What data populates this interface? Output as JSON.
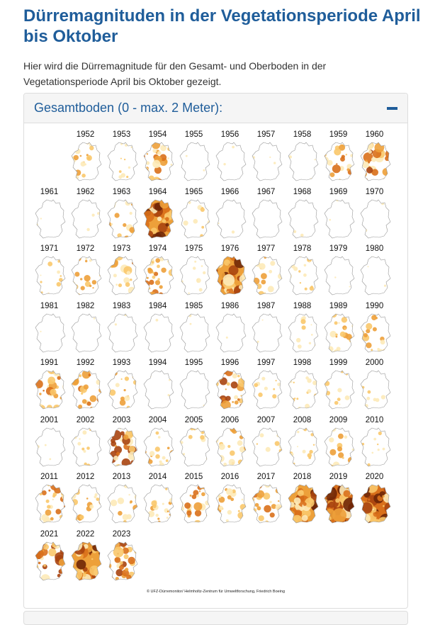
{
  "page": {
    "title": "Dürremagnituden in der Vegetationsperiode April bis Oktober",
    "intro": "Hier wird die Dürremagnitude für den Gesamt- und Oberboden in der Vegetationsperiode April bis Oktober gezeigt."
  },
  "panel": {
    "title": "Gesamtboden (0 - max. 2 Meter):",
    "toggle_icon": "minus-icon",
    "credit": "© UFZ-Dürremonitor/ Helmholtz-Zentrum für Umweltforschung, Friedrich Boeing"
  },
  "colors": {
    "accent": "#1f5d9a",
    "scale": [
      "#ffffff",
      "#fdeab8",
      "#f9c86c",
      "#eda03a",
      "#d9701b",
      "#a84410",
      "#6f2607"
    ]
  },
  "years": [
    {
      "year": "1952",
      "level": 2
    },
    {
      "year": "1953",
      "level": 1
    },
    {
      "year": "1954",
      "level": 3
    },
    {
      "year": "1955",
      "level": 0
    },
    {
      "year": "1956",
      "level": 0
    },
    {
      "year": "1957",
      "level": 0
    },
    {
      "year": "1958",
      "level": 0
    },
    {
      "year": "1959",
      "level": 3
    },
    {
      "year": "1960",
      "level": 4
    },
    {
      "year": "1961",
      "level": 0
    },
    {
      "year": "1962",
      "level": 0
    },
    {
      "year": "1963",
      "level": 2
    },
    {
      "year": "1964",
      "level": 5
    },
    {
      "year": "1965",
      "level": 1
    },
    {
      "year": "1966",
      "level": 0
    },
    {
      "year": "1967",
      "level": 0
    },
    {
      "year": "1968",
      "level": 0
    },
    {
      "year": "1969",
      "level": 0
    },
    {
      "year": "1970",
      "level": 0
    },
    {
      "year": "1971",
      "level": 1
    },
    {
      "year": "1972",
      "level": 2
    },
    {
      "year": "1973",
      "level": 3
    },
    {
      "year": "1974",
      "level": 3
    },
    {
      "year": "1975",
      "level": 1
    },
    {
      "year": "1976",
      "level": 5
    },
    {
      "year": "1977",
      "level": 2
    },
    {
      "year": "1978",
      "level": 1
    },
    {
      "year": "1979",
      "level": 0
    },
    {
      "year": "1980",
      "level": 0
    },
    {
      "year": "1981",
      "level": 0
    },
    {
      "year": "1982",
      "level": 0
    },
    {
      "year": "1983",
      "level": 0
    },
    {
      "year": "1984",
      "level": 0
    },
    {
      "year": "1985",
      "level": 0
    },
    {
      "year": "1986",
      "level": 0
    },
    {
      "year": "1987",
      "level": 0
    },
    {
      "year": "1988",
      "level": 1
    },
    {
      "year": "1989",
      "level": 2
    },
    {
      "year": "1990",
      "level": 2
    },
    {
      "year": "1991",
      "level": 3
    },
    {
      "year": "1992",
      "level": 3
    },
    {
      "year": "1993",
      "level": 2
    },
    {
      "year": "1994",
      "level": 0
    },
    {
      "year": "1995",
      "level": 0
    },
    {
      "year": "1996",
      "level": 4
    },
    {
      "year": "1997",
      "level": 1
    },
    {
      "year": "1998",
      "level": 1
    },
    {
      "year": "1999",
      "level": 1
    },
    {
      "year": "2000",
      "level": 1
    },
    {
      "year": "2001",
      "level": 0
    },
    {
      "year": "2002",
      "level": 1
    },
    {
      "year": "2003",
      "level": 4
    },
    {
      "year": "2004",
      "level": 2
    },
    {
      "year": "2005",
      "level": 1
    },
    {
      "year": "2006",
      "level": 2
    },
    {
      "year": "2007",
      "level": 1
    },
    {
      "year": "2008",
      "level": 1
    },
    {
      "year": "2009",
      "level": 2
    },
    {
      "year": "2010",
      "level": 1
    },
    {
      "year": "2011",
      "level": 3
    },
    {
      "year": "2012",
      "level": 2
    },
    {
      "year": "2013",
      "level": 2
    },
    {
      "year": "2014",
      "level": 2
    },
    {
      "year": "2015",
      "level": 3
    },
    {
      "year": "2016",
      "level": 2
    },
    {
      "year": "2017",
      "level": 3
    },
    {
      "year": "2018",
      "level": 5
    },
    {
      "year": "2019",
      "level": 6
    },
    {
      "year": "2020",
      "level": 6
    },
    {
      "year": "2021",
      "level": 4
    },
    {
      "year": "2022",
      "level": 5
    },
    {
      "year": "2023",
      "level": 4
    }
  ]
}
